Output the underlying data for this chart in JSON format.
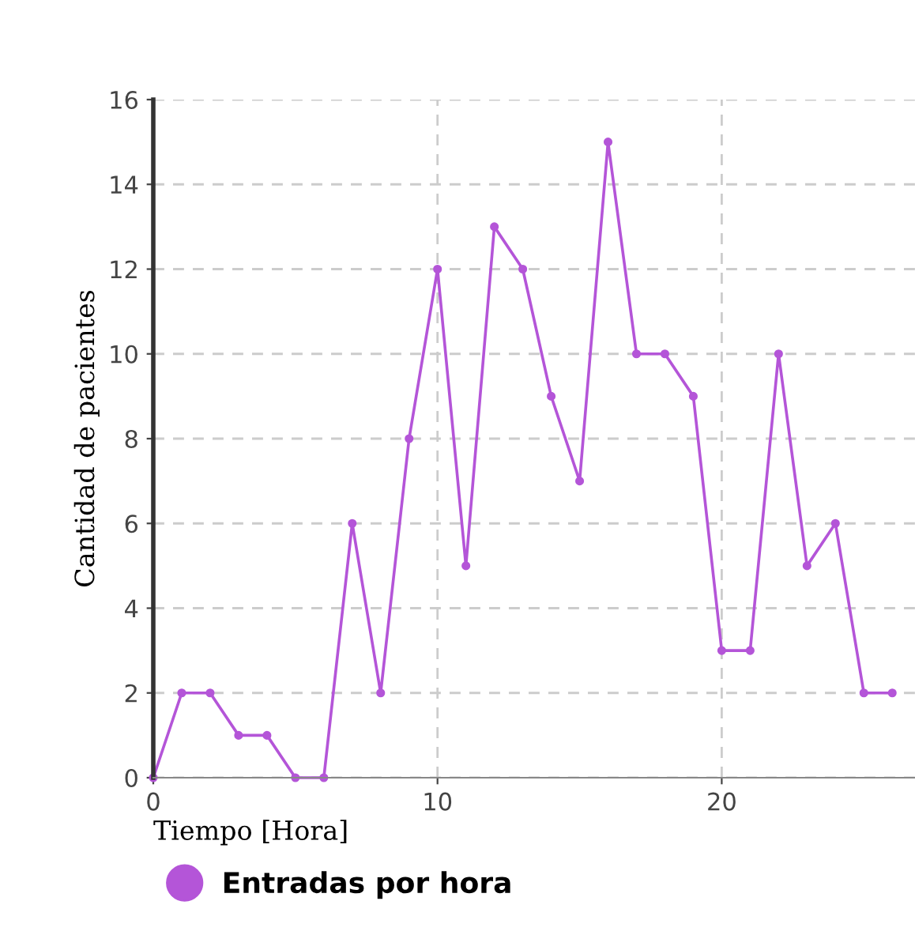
{
  "chart_data": {
    "type": "line",
    "xlabel": "Tiempo [Hora]",
    "ylabel": "Cantidad de pacientes",
    "x": [
      0,
      1,
      2,
      3,
      4,
      5,
      6,
      7,
      8,
      9,
      10,
      11,
      12,
      13,
      14,
      15,
      16,
      17,
      18,
      19,
      20,
      21,
      22,
      23,
      24,
      25,
      26
    ],
    "series": [
      {
        "name": "Entradas por hora",
        "color": "#b455d8",
        "values": [
          0,
          2,
          2,
          1,
          1,
          0,
          0,
          6,
          2,
          8,
          12,
          5,
          13,
          12,
          9,
          7,
          15,
          10,
          10,
          9,
          3,
          3,
          10,
          5,
          6,
          2,
          2
        ]
      }
    ],
    "xlim": [
      0,
      26.8
    ],
    "xticks": [
      0,
      10,
      20
    ],
    "ylim": [
      0,
      16
    ],
    "yticks": [
      0,
      2,
      4,
      6,
      8,
      10,
      12,
      14,
      16
    ],
    "grid": true,
    "legend": "bottom",
    "marker": "circle",
    "line_style": "solid"
  }
}
